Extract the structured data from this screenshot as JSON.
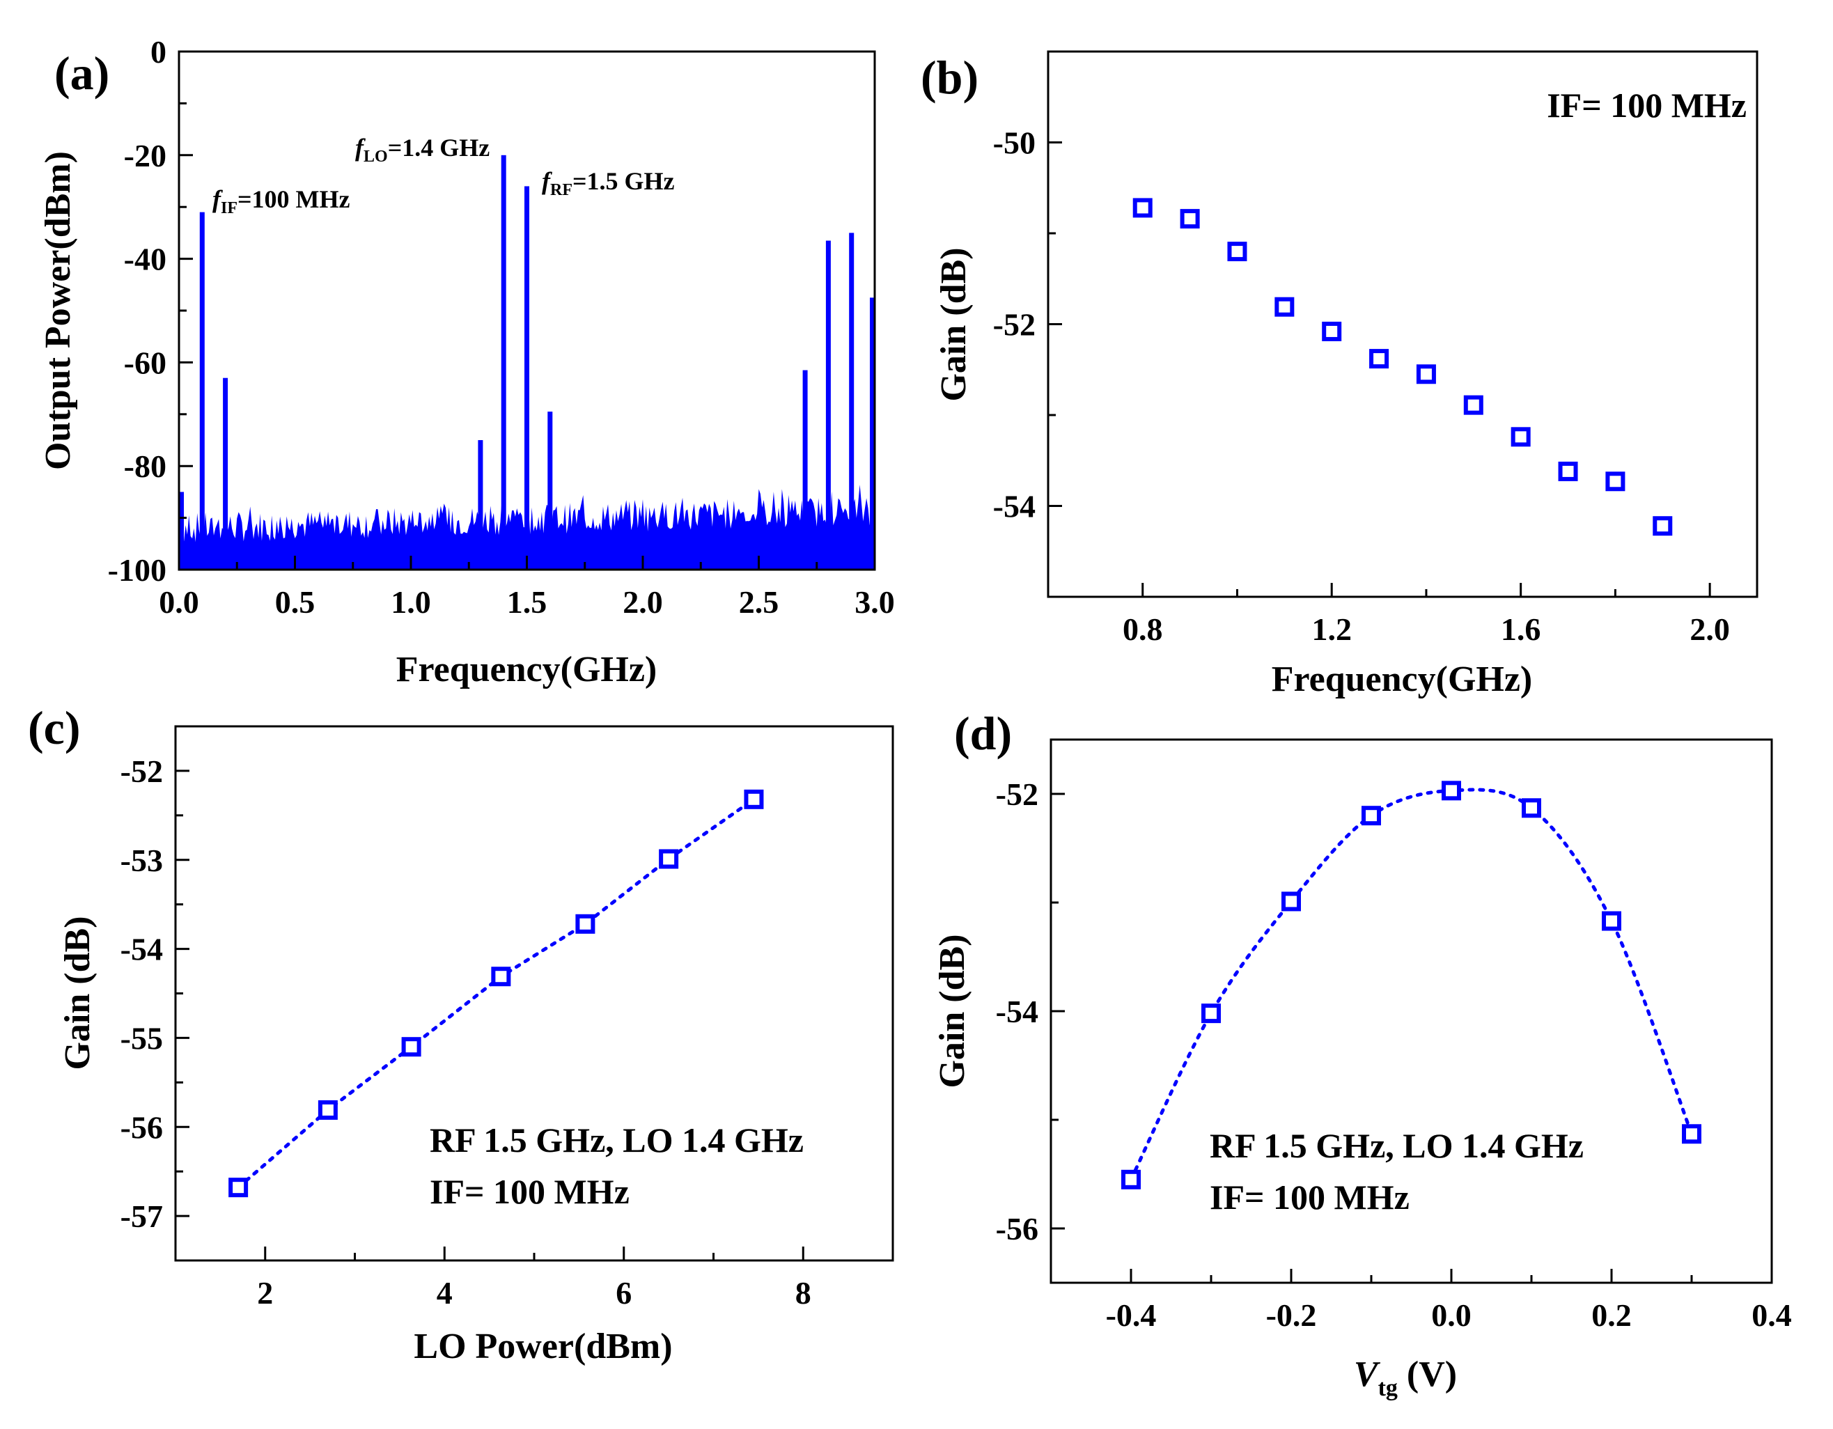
{
  "colors": {
    "series": "#0000ff",
    "axis": "#000000",
    "background": "#ffffff"
  },
  "chart_data": [
    {
      "panel": "(a)",
      "type": "line",
      "title": "",
      "xlabel": "Frequency(GHz)",
      "ylabel": "Output Power(dBm)",
      "xlim": [
        0,
        3
      ],
      "ylim": [
        -100,
        0
      ],
      "xticks": [
        "0.0",
        "0.5",
        "1.0",
        "1.5",
        "2.0",
        "2.5",
        "3.0"
      ],
      "yticks": [
        "0",
        "-20",
        "-40",
        "-60",
        "-80",
        "-100"
      ],
      "noise_floor": [
        -95,
        -87
      ],
      "peaks": [
        {
          "x": 0.0,
          "y": -85
        },
        {
          "x": 0.1,
          "y": -31
        },
        {
          "x": 0.2,
          "y": -63
        },
        {
          "x": 1.3,
          "y": -75
        },
        {
          "x": 1.4,
          "y": -20
        },
        {
          "x": 1.5,
          "y": -26
        },
        {
          "x": 1.6,
          "y": -69.5
        },
        {
          "x": 2.7,
          "y": -61.5
        },
        {
          "x": 2.8,
          "y": -36.5
        },
        {
          "x": 2.9,
          "y": -35
        },
        {
          "x": 3.0,
          "y": -47.5
        }
      ],
      "annotations": [
        {
          "f": "f",
          "sub": "IF",
          "value": "=100 MHz"
        },
        {
          "f": "f",
          "sub": "LO",
          "value": "=1.4 GHz"
        },
        {
          "f": "f",
          "sub": "RF",
          "value": "=1.5 GHz"
        }
      ]
    },
    {
      "panel": "(b)",
      "type": "scatter",
      "title": "",
      "xlabel": "Frequency(GHz)",
      "ylabel": "Gain (dB)",
      "xlim": [
        0.6,
        2.1
      ],
      "ylim": [
        -55,
        -49
      ],
      "xticks": [
        "0.8",
        "1.2",
        "1.6",
        "2.0"
      ],
      "yticks": [
        "-50",
        "-52",
        "-54"
      ],
      "annotation": "IF= 100 MHz",
      "x": [
        0.8,
        0.9,
        1.0,
        1.1,
        1.2,
        1.3,
        1.4,
        1.5,
        1.6,
        1.7,
        1.8,
        1.9
      ],
      "y": [
        -50.72,
        -50.84,
        -51.2,
        -51.81,
        -52.08,
        -52.38,
        -52.55,
        -52.89,
        -53.24,
        -53.62,
        -53.73,
        -54.22
      ]
    },
    {
      "panel": "(c)",
      "type": "line",
      "title": "",
      "xlabel": "LO Power(dBm)",
      "ylabel": "Gain (dB)",
      "xlim": [
        1,
        9
      ],
      "ylim": [
        -57.5,
        -51.5
      ],
      "xticks": [
        "2",
        "4",
        "6",
        "8"
      ],
      "yticks": [
        "-52",
        "-53",
        "-54",
        "-55",
        "-56",
        "-57"
      ],
      "annotation_lines": [
        "RF 1.5 GHz, LO 1.4 GHz",
        "IF= 100 MHz"
      ],
      "x": [
        1.7,
        2.7,
        3.63,
        4.63,
        5.57,
        6.5,
        7.45
      ],
      "y": [
        -56.68,
        -55.81,
        -55.1,
        -54.31,
        -53.72,
        -52.99,
        -52.32
      ]
    },
    {
      "panel": "(d)",
      "type": "line",
      "title": "",
      "xlabel": "V",
      "xlabel_sub": "tg",
      "xlabel_unit": " (V)",
      "ylabel": "Gain (dB)",
      "xlim": [
        -0.5,
        0.4
      ],
      "ylim": [
        -56.5,
        -51.5
      ],
      "xticks": [
        "-0.4",
        "-0.2",
        "0.0",
        "0.2",
        "0.4"
      ],
      "yticks": [
        "-52",
        "-54",
        "-56"
      ],
      "annotation_lines": [
        "RF 1.5 GHz, LO 1.4 GHz",
        "IF= 100 MHz"
      ],
      "x": [
        -0.4,
        -0.3,
        -0.2,
        -0.1,
        0.0,
        0.1,
        0.2,
        0.3
      ],
      "y": [
        -55.55,
        -54.02,
        -52.99,
        -52.2,
        -51.97,
        -52.13,
        -53.17,
        -55.13
      ]
    }
  ]
}
